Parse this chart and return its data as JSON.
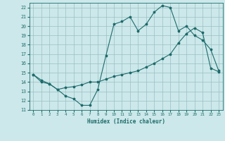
{
  "title": "",
  "xlabel": "Humidex (Indice chaleur)",
  "bg_color": "#cce8ea",
  "grid_color": "#9bbfc2",
  "line_color": "#1e6b6b",
  "x_upper": [
    0,
    1,
    2,
    3,
    4,
    5,
    6,
    7,
    8,
    9,
    10,
    11,
    12,
    13,
    14,
    15,
    16,
    17,
    18,
    19,
    20,
    21,
    22,
    23
  ],
  "y_upper": [
    14.8,
    14.2,
    13.8,
    13.2,
    12.5,
    12.2,
    11.5,
    11.5,
    13.2,
    16.8,
    20.2,
    20.5,
    21.0,
    19.5,
    20.2,
    21.5,
    22.2,
    22.0,
    19.5,
    20.0,
    19.0,
    18.5,
    17.5,
    15.2
  ],
  "x_lower": [
    0,
    1,
    2,
    3,
    4,
    5,
    6,
    7,
    8,
    9,
    10,
    11,
    12,
    13,
    14,
    15,
    16,
    17,
    18,
    19,
    20,
    21,
    22,
    23
  ],
  "y_lower": [
    14.8,
    14.0,
    13.8,
    13.2,
    13.4,
    13.5,
    13.7,
    14.0,
    14.0,
    14.3,
    14.6,
    14.8,
    15.0,
    15.2,
    15.6,
    16.0,
    16.5,
    17.0,
    18.2,
    19.2,
    19.8,
    19.3,
    15.5,
    15.1
  ],
  "ylim": [
    11,
    22.5
  ],
  "xlim": [
    -0.5,
    23.5
  ],
  "yticks": [
    11,
    12,
    13,
    14,
    15,
    16,
    17,
    18,
    19,
    20,
    21,
    22
  ],
  "xticks": [
    0,
    1,
    2,
    3,
    4,
    5,
    6,
    7,
    8,
    9,
    10,
    11,
    12,
    13,
    14,
    15,
    16,
    17,
    18,
    19,
    20,
    21,
    22,
    23
  ]
}
